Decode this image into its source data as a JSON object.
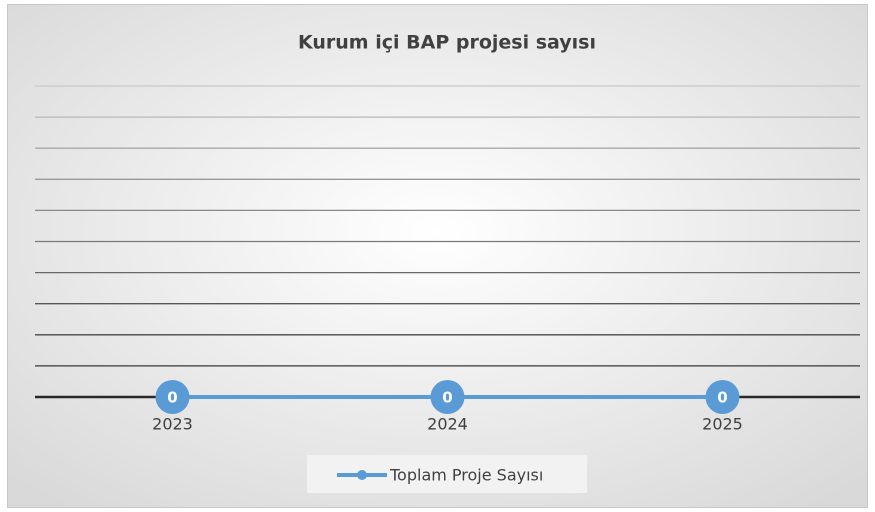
{
  "chart_data": {
    "type": "line",
    "title": "Kurum içi BAP projesi sayısı",
    "categories": [
      "2023",
      "2024",
      "2025"
    ],
    "series": [
      {
        "name": "Toplam Proje Sayısı",
        "color": "#5b9bd5",
        "values": [
          0,
          0,
          0
        ]
      }
    ],
    "ylim": [
      0,
      1
    ],
    "yticks": [
      0,
      0.1,
      0.2,
      0.3,
      0.4,
      0.5,
      0.6,
      0.7,
      0.8,
      0.9,
      1
    ],
    "grid": true,
    "data_labels": true,
    "legend": "bottom"
  }
}
